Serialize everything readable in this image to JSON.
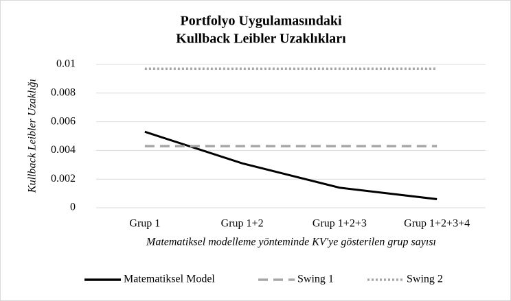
{
  "chart_data": {
    "type": "line",
    "title": [
      "Portfolyo Uygulamasındaki",
      "Kullback Leibler Uzaklıkları"
    ],
    "x_label": "Matematiksel modelleme yönteminde KV'ye gösterilen grup sayısı",
    "y_label": "Kullback Leibler Uzaklığı",
    "categories": [
      "Grup 1",
      "Grup 1+2",
      "Grup 1+2+3",
      "Grup 1+2+3+4"
    ],
    "series": [
      {
        "name": "Matematiksel Model",
        "color": "#000000",
        "style": "solid",
        "values": [
          0.0053,
          0.0031,
          0.0014,
          0.0006
        ]
      },
      {
        "name": "Swing 1",
        "color": "#a6a6a6",
        "style": "dashed",
        "values": [
          0.0043,
          0.0043,
          0.0043,
          0.0043
        ]
      },
      {
        "name": "Swing 2",
        "color": "#a6a6a6",
        "style": "dotted",
        "values": [
          0.0097,
          0.0097,
          0.0097,
          0.0097
        ]
      }
    ],
    "ylim": [
      0,
      0.01
    ],
    "yticks": [
      0,
      0.002,
      0.004,
      0.006,
      0.008,
      0.01
    ],
    "grid": true,
    "legend": "bottom"
  }
}
